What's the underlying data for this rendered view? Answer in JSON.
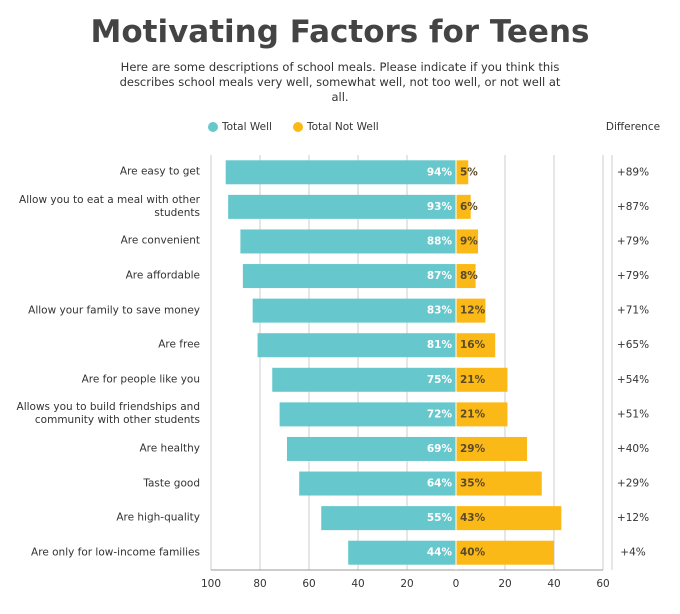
{
  "chart_data": {
    "type": "diverging-bar",
    "title": "Motivating Factors for Teens",
    "subtitle": "Here are some descriptions of school meals. Please indicate if you think this describes school meals very well, somewhat well, not too well, or not well at all.",
    "categories": [
      "Are easy to get",
      "Allow you to eat a meal with other students",
      "Are convenient",
      "Are affordable",
      "Allow your family to save money",
      "Are free",
      "Are for people like you",
      "Allows you to build friendships and community with other students",
      "Are healthy",
      "Taste good",
      "Are high-quality",
      "Are only for low-income families"
    ],
    "series": [
      {
        "name": "Total Well",
        "color": "#66c8cc",
        "values": [
          94,
          93,
          88,
          87,
          83,
          81,
          75,
          72,
          69,
          64,
          55,
          44
        ],
        "value_labels": [
          "94%",
          "93%",
          "88%",
          "87%",
          "83%",
          "81%",
          "75%",
          "72%",
          "69%",
          "64%",
          "55%",
          "44%"
        ]
      },
      {
        "name": "Total Not Well",
        "color": "#fbb917",
        "values": [
          5,
          6,
          9,
          8,
          12,
          16,
          21,
          21,
          29,
          35,
          43,
          40
        ],
        "value_labels": [
          "5%",
          "6%",
          "9%",
          "8%",
          "12%",
          "16%",
          "21%",
          "21%",
          "29%",
          "35%",
          "43%",
          "40%"
        ]
      }
    ],
    "difference": {
      "title": "Difference",
      "values": [
        89,
        87,
        79,
        79,
        71,
        65,
        54,
        51,
        40,
        29,
        12,
        4
      ],
      "value_labels": [
        "+89%",
        "+87%",
        "+79%",
        "+79%",
        "+71%",
        "+65%",
        "+54%",
        "+51%",
        "+40%",
        "+29%",
        "+12%",
        "+4%"
      ]
    },
    "xlim": [
      -100,
      60
    ],
    "xticks": [
      {
        "value": -100,
        "label": "100"
      },
      {
        "value": -80,
        "label": "80"
      },
      {
        "value": -60,
        "label": "60"
      },
      {
        "value": -40,
        "label": "40"
      },
      {
        "value": -20,
        "label": "20"
      },
      0,
      20,
      40,
      60
    ],
    "grid": true
  }
}
